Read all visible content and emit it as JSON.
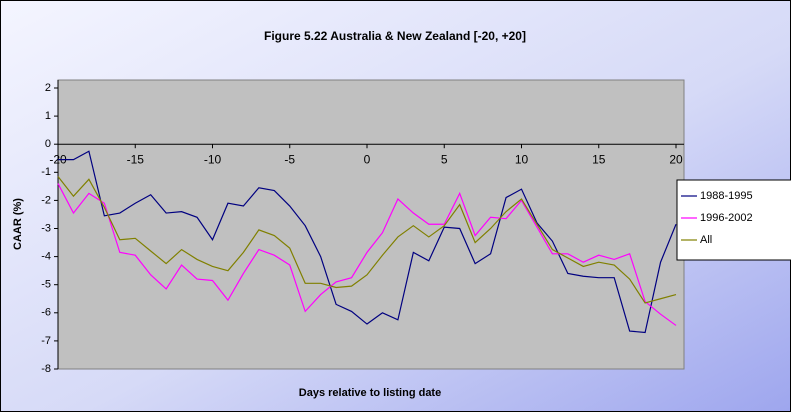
{
  "chart_data": {
    "type": "line",
    "title": "Figure 5.22 Australia & New Zealand [-20, +20]",
    "xlabel": "Days relative to listing date",
    "ylabel": "CAAR (%)",
    "x": [
      -20,
      -19,
      -18,
      -17,
      -16,
      -15,
      -14,
      -13,
      -12,
      -11,
      -10,
      -9,
      -8,
      -7,
      -6,
      -5,
      -4,
      -3,
      -2,
      -1,
      0,
      1,
      2,
      3,
      4,
      5,
      6,
      7,
      8,
      9,
      10,
      11,
      12,
      13,
      14,
      15,
      16,
      17,
      18,
      19,
      20
    ],
    "xlim": [
      -20,
      20
    ],
    "xticks": [
      -20,
      -15,
      -10,
      -5,
      0,
      5,
      10,
      15,
      20
    ],
    "ylim": [
      -8,
      2
    ],
    "yticks": [
      -8,
      -7,
      -6,
      -5,
      -4,
      -3,
      -2,
      -1,
      0,
      1,
      2
    ],
    "legend": "right",
    "series": [
      {
        "name": "1988-1995",
        "color": "#000080",
        "values": [
          -0.55,
          -0.55,
          -0.25,
          -2.55,
          -2.45,
          -2.1,
          -1.8,
          -2.45,
          -2.4,
          -2.6,
          -3.4,
          -2.1,
          -2.2,
          -1.55,
          -1.65,
          -2.2,
          -2.9,
          -4.0,
          -5.7,
          -5.95,
          -6.4,
          -6.0,
          -6.25,
          -3.85,
          -4.15,
          -2.95,
          -3.0,
          -4.25,
          -3.9,
          -1.9,
          -1.6,
          -2.8,
          -3.45,
          -4.6,
          -4.7,
          -4.75,
          -4.75,
          -6.65,
          -6.7,
          -4.2,
          -2.85
        ]
      },
      {
        "name": "1996-2002",
        "color": "#ff00ff",
        "values": [
          -1.4,
          -2.45,
          -1.75,
          -2.1,
          -3.85,
          -3.95,
          -4.65,
          -5.15,
          -4.3,
          -4.8,
          -4.85,
          -5.55,
          -4.6,
          -3.75,
          -3.95,
          -4.3,
          -5.95,
          -5.35,
          -4.9,
          -4.75,
          -3.85,
          -3.15,
          -1.95,
          -2.45,
          -2.85,
          -2.85,
          -1.75,
          -3.25,
          -2.6,
          -2.65,
          -2.0,
          -2.95,
          -3.9,
          -3.9,
          -4.2,
          -3.95,
          -4.1,
          -3.9,
          -5.6,
          -6.05,
          -6.45
        ]
      },
      {
        "name": "All",
        "color": "#808000",
        "values": [
          -1.15,
          -1.85,
          -1.25,
          -2.25,
          -3.4,
          -3.35,
          -3.8,
          -4.25,
          -3.75,
          -4.1,
          -4.35,
          -4.5,
          -3.85,
          -3.05,
          -3.25,
          -3.7,
          -4.95,
          -4.95,
          -5.1,
          -5.05,
          -4.65,
          -3.95,
          -3.3,
          -2.9,
          -3.3,
          -2.9,
          -2.15,
          -3.5,
          -3.0,
          -2.4,
          -1.95,
          -2.85,
          -3.75,
          -4.05,
          -4.35,
          -4.2,
          -4.3,
          -4.8,
          -5.65,
          -5.5,
          -5.35
        ]
      }
    ]
  }
}
